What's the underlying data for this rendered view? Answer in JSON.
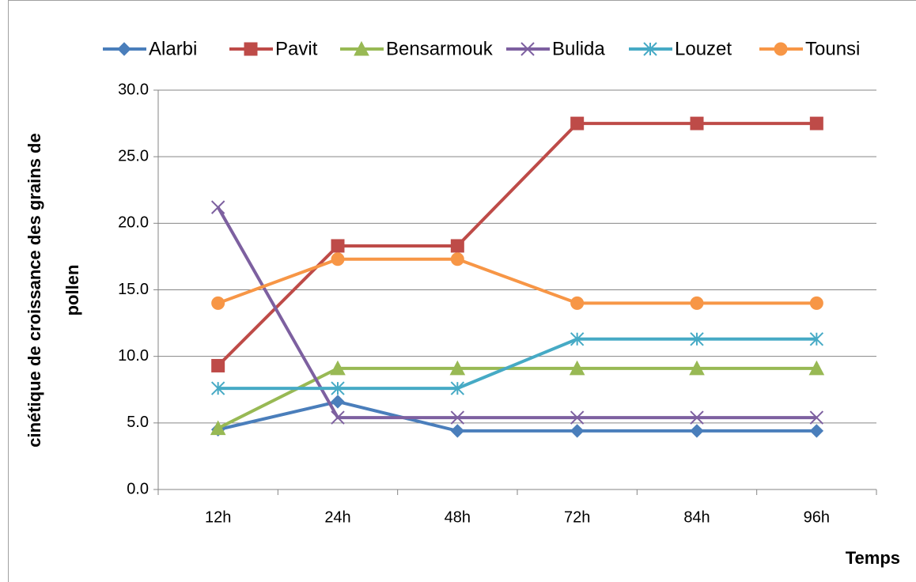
{
  "chart_data": {
    "type": "line",
    "categories": [
      "12h",
      "24h",
      "48h",
      "72h",
      "84h",
      "96h"
    ],
    "series": [
      {
        "name": "Alarbi",
        "color": "#4a7ebb",
        "marker": "diamond",
        "values": [
          4.5,
          6.6,
          4.4,
          4.4,
          4.4,
          4.4
        ]
      },
      {
        "name": "Pavit",
        "color": "#be4b48",
        "marker": "square",
        "values": [
          9.3,
          18.3,
          18.3,
          27.5,
          27.5,
          27.5
        ]
      },
      {
        "name": "Bensarmouk",
        "color": "#98b954",
        "marker": "triangle",
        "values": [
          4.6,
          9.1,
          9.1,
          9.1,
          9.1,
          9.1
        ]
      },
      {
        "name": "Bulida",
        "color": "#7d60a0",
        "marker": "x",
        "values": [
          21.2,
          5.4,
          5.4,
          5.4,
          5.4,
          5.4
        ]
      },
      {
        "name": "Louzet",
        "color": "#46aac5",
        "marker": "star",
        "values": [
          7.6,
          7.6,
          7.6,
          11.3,
          11.3,
          11.3
        ]
      },
      {
        "name": "Tounsi",
        "color": "#f79646",
        "marker": "circle",
        "values": [
          14.0,
          17.3,
          17.3,
          14.0,
          14.0,
          14.0
        ]
      }
    ],
    "x_label": "Temps",
    "y_label": [
      "cinétique de croissance des grains de",
      "pollen"
    ],
    "ylim": [
      0,
      30
    ],
    "yticks": [
      {
        "value": 0,
        "label": "0.0"
      },
      {
        "value": 5,
        "label": "5.0"
      },
      {
        "value": 10,
        "label": "10.0"
      },
      {
        "value": 15,
        "label": "15.0"
      },
      {
        "value": 20,
        "label": "20.0"
      },
      {
        "value": 25,
        "label": "25.0"
      },
      {
        "value": 30,
        "label": "30.0"
      }
    ],
    "grid": true,
    "legend": "top"
  }
}
